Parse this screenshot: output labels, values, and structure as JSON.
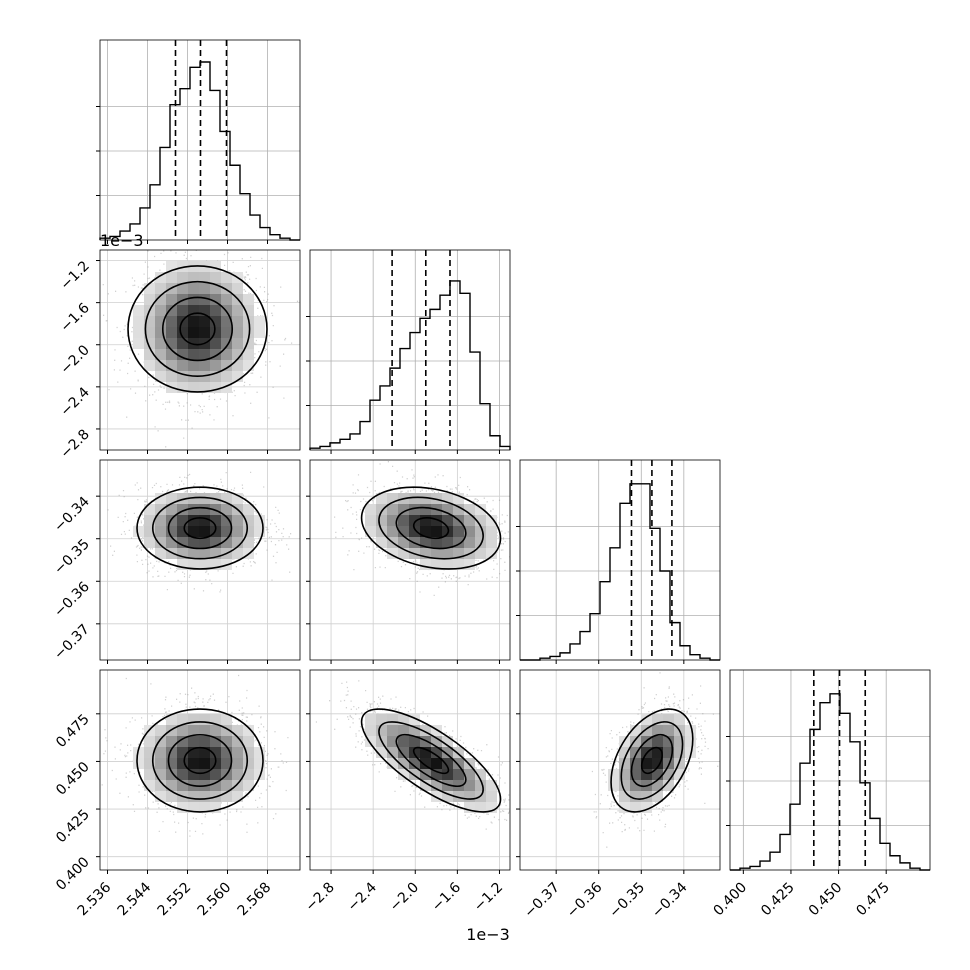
{
  "figure": {
    "offset_label_y1": "1e−3",
    "offset_label_x1": "1e−3"
  },
  "chart_data": {
    "type": "corner",
    "parameters": [
      {
        "range": [
          2.5345,
          2.5745
        ],
        "ticks": [
          2.536,
          2.544,
          2.552,
          2.56,
          2.568
        ],
        "tick_labels": [
          "2.536",
          "2.544",
          "2.552",
          "2.560",
          "2.568"
        ],
        "offset_label": "",
        "quantiles": [
          2.5496,
          2.5546,
          2.5598
        ],
        "hist_bins": [
          0.01,
          0.02,
          0.05,
          0.09,
          0.18,
          0.31,
          0.52,
          0.76,
          0.85,
          0.97,
          1.0,
          0.84,
          0.61,
          0.42,
          0.26,
          0.14,
          0.07,
          0.03,
          0.01,
          0.0
        ]
      },
      {
        "range": [
          -3.0,
          -1.1
        ],
        "ticks": [
          -2.8,
          -2.4,
          -2.0,
          -1.6,
          -1.2
        ],
        "tick_labels": [
          "−2.8",
          "−2.4",
          "−2.0",
          "−1.6",
          "−1.2"
        ],
        "offset_label": "1e−3",
        "quantiles": [
          -2.22,
          -1.9,
          -1.67
        ],
        "hist_bins": [
          0.01,
          0.02,
          0.04,
          0.06,
          0.09,
          0.16,
          0.28,
          0.36,
          0.46,
          0.57,
          0.66,
          0.74,
          0.79,
          0.87,
          0.95,
          0.88,
          0.55,
          0.26,
          0.08,
          0.02
        ]
      },
      {
        "range": [
          -0.3785,
          -0.3315
        ],
        "ticks": [
          -0.37,
          -0.36,
          -0.35,
          -0.34
        ],
        "tick_labels": [
          "−0.37",
          "−0.36",
          "−0.35",
          "−0.34"
        ],
        "offset_label": "",
        "quantiles": [
          -0.3523,
          -0.3475,
          -0.3428
        ],
        "hist_bins": [
          0.0,
          0.0,
          0.01,
          0.02,
          0.04,
          0.09,
          0.16,
          0.26,
          0.44,
          0.63,
          0.88,
          0.99,
          0.99,
          0.74,
          0.5,
          0.21,
          0.08,
          0.03,
          0.01,
          0.0
        ]
      },
      {
        "range": [
          0.393,
          0.498
        ],
        "ticks": [
          0.4,
          0.425,
          0.45,
          0.475
        ],
        "tick_labels": [
          "0.400",
          "0.425",
          "0.450",
          "0.475"
        ],
        "offset_label": "",
        "quantiles": [
          0.437,
          0.4505,
          0.464
        ],
        "hist_bins": [
          0.0,
          0.01,
          0.02,
          0.05,
          0.1,
          0.2,
          0.37,
          0.6,
          0.79,
          0.94,
          0.99,
          0.88,
          0.72,
          0.49,
          0.29,
          0.15,
          0.08,
          0.04,
          0.01,
          0.0
        ]
      }
    ],
    "pairs": [
      {
        "x": 0,
        "y": 1,
        "center": [
          2.554,
          -1.85
        ],
        "spread": [
          0.0063,
          0.33
        ],
        "rho": 0.0
      },
      {
        "x": 0,
        "y": 2,
        "center": [
          2.5545,
          -0.3475
        ],
        "spread": [
          0.0063,
          0.0048
        ],
        "rho": 0.0
      },
      {
        "x": 1,
        "y": 2,
        "center": [
          -1.85,
          -0.3475
        ],
        "spread": [
          0.33,
          0.0048
        ],
        "rho": -0.25
      },
      {
        "x": 0,
        "y": 3,
        "center": [
          2.5545,
          0.4505
        ],
        "spread": [
          0.0063,
          0.0135
        ],
        "rho": 0.0
      },
      {
        "x": 1,
        "y": 3,
        "center": [
          -1.85,
          0.4505
        ],
        "spread": [
          0.33,
          0.0135
        ],
        "rho": -0.75
      },
      {
        "x": 2,
        "y": 3,
        "center": [
          -0.3475,
          0.4505
        ],
        "spread": [
          0.0048,
          0.0135
        ],
        "rho": 0.42
      }
    ],
    "contour_levels": [
      0.5,
      1.0,
      1.5,
      2.0
    ],
    "grid": true
  }
}
